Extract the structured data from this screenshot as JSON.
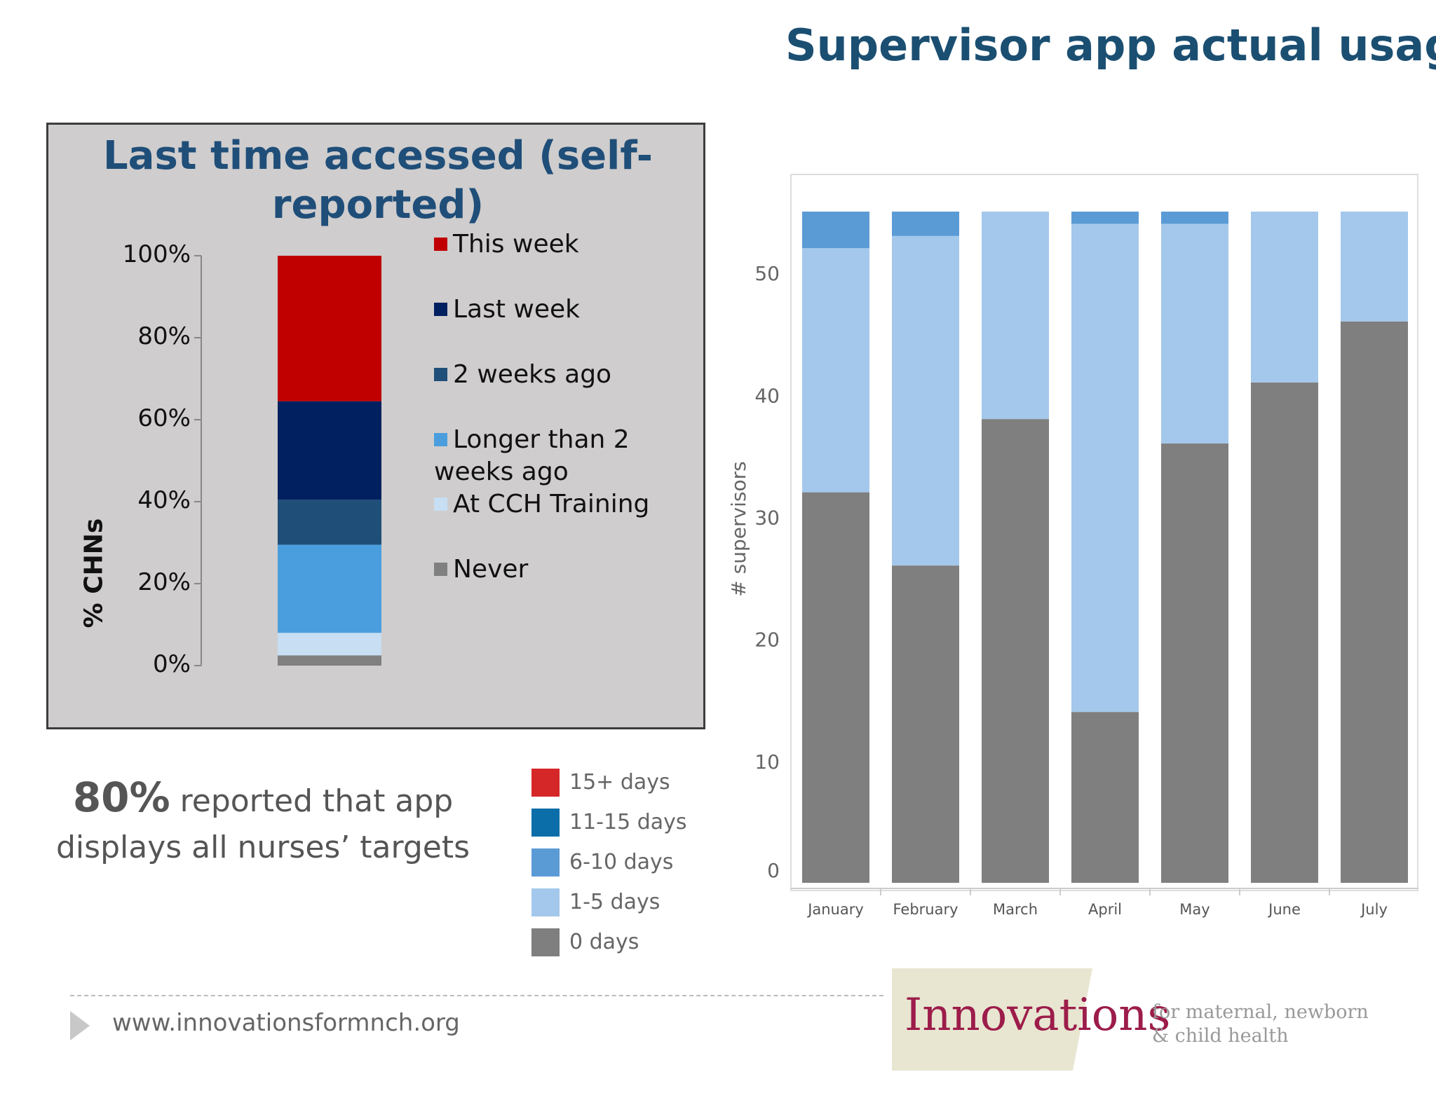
{
  "slide": {
    "title": "Supervisor app actual usage",
    "caption_pct": "80%",
    "caption_rest": "reported that app displays all nurses’ targets",
    "footer_url": "www.innovationsformnch.org",
    "logo_word": "Innovations",
    "logo_tag": "for maternal, newborn & child health"
  },
  "colors": {
    "this_week": "#c00000",
    "last_week": "#002060",
    "two_weeks": "#1f4e79",
    "longer": "#4a9edd",
    "training": "#c7def3",
    "never": "#808080",
    "d15": "#d62728",
    "d11": "#0b6ea8",
    "d6": "#5b9bd5",
    "d1": "#a4c8eb",
    "d0": "#7f7f7f"
  },
  "chart_data": [
    {
      "type": "bar",
      "stacked": true,
      "title": "Last time accessed (self-reported)",
      "ylabel": "% CHNs",
      "ylim": [
        0,
        100
      ],
      "yticks": [
        "100%",
        "80%",
        "60%",
        "40%",
        "20%",
        "0%"
      ],
      "categories": [
        ""
      ],
      "series": [
        {
          "name": "Never",
          "values": [
            2.5
          ]
        },
        {
          "name": "At CCH Training",
          "values": [
            5.5
          ]
        },
        {
          "name": "Longer than 2 weeks ago",
          "values": [
            21.5
          ]
        },
        {
          "name": "2 weeks ago",
          "values": [
            11
          ]
        },
        {
          "name": "Last week",
          "values": [
            24
          ]
        },
        {
          "name": "This week",
          "values": [
            35.5
          ]
        }
      ],
      "legend": [
        "This week",
        "Last week",
        "2 weeks ago",
        "Longer than 2 weeks ago",
        "At CCH Training",
        "Never"
      ],
      "legend_placement": "right",
      "grid": false
    },
    {
      "type": "bar",
      "stacked": true,
      "ylabel": "# supervisors",
      "ylim": [
        0,
        55
      ],
      "yticks": [
        "50",
        "40",
        "30",
        "20",
        "10",
        "0"
      ],
      "categories": [
        "January",
        "February",
        "March",
        "April",
        "May",
        "June",
        "July"
      ],
      "series": [
        {
          "name": "0 days",
          "values": [
            32,
            26,
            38,
            14,
            36,
            41,
            46
          ]
        },
        {
          "name": "1-5 days",
          "values": [
            20,
            27,
            17,
            40,
            18,
            14,
            9
          ]
        },
        {
          "name": "6-10 days",
          "values": [
            3,
            2,
            0,
            1,
            1,
            0,
            0
          ]
        },
        {
          "name": "11-15 days",
          "values": [
            0,
            0,
            0,
            0,
            0,
            0,
            0
          ]
        },
        {
          "name": "15+ days",
          "values": [
            0,
            0,
            0,
            0,
            0,
            0,
            0
          ]
        }
      ],
      "legend": [
        "15+ days",
        "11-15 days",
        "6-10 days",
        "1-5 days",
        "0 days"
      ],
      "legend_placement": "bottom-left",
      "grid": false
    }
  ]
}
